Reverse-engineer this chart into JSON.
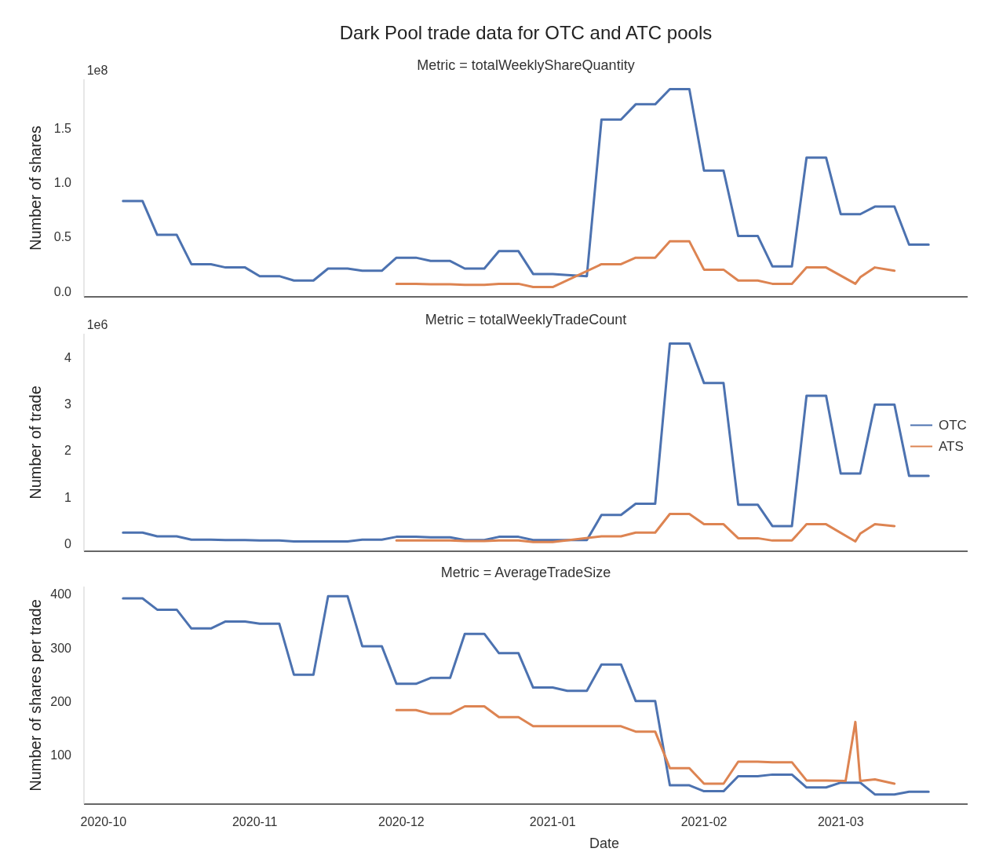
{
  "chart_data": [
    {
      "type": "line",
      "title": "Dark Pool trade data for OTC and ATC pools",
      "subtitle": "Metric = totalWeeklyShareQuantity",
      "ylabel": "Number of shares",
      "annotations": [
        "1e8"
      ],
      "xlim": [
        "2020-09-27",
        "2021-03-27"
      ],
      "ylim": [
        -0.05,
        1.95
      ],
      "yticks": [
        {
          "value": 0,
          "label": "0.0"
        },
        0.5,
        {
          "value": 1,
          "label": "1.0"
        },
        1.5
      ],
      "tick_labels": "y",
      "grid": false,
      "legend": false,
      "series": [
        {
          "color": "#4c72b0",
          "x": [
            "2020-10-05",
            "2020-10-09",
            "2020-10-12",
            "2020-10-16",
            "2020-10-19",
            "2020-10-23",
            "2020-10-26",
            "2020-10-30",
            "2020-11-02",
            "2020-11-06",
            "2020-11-09",
            "2020-11-13",
            "2020-11-16",
            "2020-11-20",
            "2020-11-23",
            "2020-11-27",
            "2020-11-30",
            "2020-12-04",
            "2020-12-07",
            "2020-12-11",
            "2020-12-14",
            "2020-12-18",
            "2020-12-21",
            "2020-12-25",
            "2020-12-28",
            "2021-01-01",
            "2021-01-04",
            "2021-01-08",
            "2021-01-11",
            "2021-01-15",
            "2021-01-18",
            "2021-01-22",
            "2021-01-25",
            "2021-01-29",
            "2021-02-01",
            "2021-02-05",
            "2021-02-08",
            "2021-02-12",
            "2021-02-15",
            "2021-02-19",
            "2021-02-22",
            "2021-02-26",
            "2021-03-01",
            "2021-03-05",
            "2021-03-08",
            "2021-03-12",
            "2021-03-15",
            "2021-03-19"
          ],
          "values": [
            0.83,
            0.83,
            0.52,
            0.52,
            0.25,
            0.25,
            0.22,
            0.22,
            0.14,
            0.14,
            0.1,
            0.1,
            0.21,
            0.21,
            0.19,
            0.19,
            0.31,
            0.31,
            0.28,
            0.28,
            0.21,
            0.21,
            0.37,
            0.37,
            0.16,
            0.16,
            0.15,
            0.14,
            1.58,
            1.58,
            1.72,
            1.72,
            1.86,
            1.86,
            1.11,
            1.11,
            0.51,
            0.51,
            0.23,
            0.23,
            1.23,
            1.23,
            0.71,
            0.71,
            0.78,
            0.78,
            0.43,
            0.43
          ]
        },
        {
          "color": "#dd8452",
          "x": [
            "2020-11-30",
            "2020-12-04",
            "2020-12-07",
            "2020-12-11",
            "2020-12-14",
            "2020-12-18",
            "2020-12-21",
            "2020-12-25",
            "2020-12-28",
            "2021-01-01",
            "2021-01-11",
            "2021-01-15",
            "2021-01-18",
            "2021-01-22",
            "2021-01-25",
            "2021-01-29",
            "2021-02-01",
            "2021-02-05",
            "2021-02-08",
            "2021-02-12",
            "2021-02-15",
            "2021-02-19",
            "2021-02-22",
            "2021-02-26",
            "2021-03-04",
            "2021-03-05",
            "2021-03-08",
            "2021-03-12"
          ],
          "values": [
            0.07,
            0.07,
            0.065,
            0.065,
            0.06,
            0.06,
            0.07,
            0.07,
            0.04,
            0.04,
            0.25,
            0.25,
            0.31,
            0.31,
            0.46,
            0.46,
            0.2,
            0.2,
            0.1,
            0.1,
            0.07,
            0.07,
            0.22,
            0.22,
            0.07,
            0.13,
            0.22,
            0.19
          ]
        }
      ]
    },
    {
      "type": "line",
      "subtitle": "Metric = totalWeeklyTradeCount",
      "ylabel": "Number of trade",
      "annotations": [
        "1e6"
      ],
      "xlim": [
        "2020-09-27",
        "2021-03-27"
      ],
      "ylim": [
        -0.16,
        4.51
      ],
      "yticks": [
        0,
        1,
        2,
        3,
        4
      ],
      "tick_labels": "y",
      "grid": false,
      "legend": "right",
      "series": [
        {
          "name": "OTC",
          "color": "#4c72b0",
          "x": [
            "2020-10-05",
            "2020-10-09",
            "2020-10-12",
            "2020-10-16",
            "2020-10-19",
            "2020-10-23",
            "2020-10-26",
            "2020-10-30",
            "2020-11-02",
            "2020-11-06",
            "2020-11-09",
            "2020-11-13",
            "2020-11-16",
            "2020-11-20",
            "2020-11-23",
            "2020-11-27",
            "2020-11-30",
            "2020-12-04",
            "2020-12-07",
            "2020-12-11",
            "2020-12-14",
            "2020-12-18",
            "2020-12-21",
            "2020-12-25",
            "2020-12-28",
            "2021-01-01",
            "2021-01-04",
            "2021-01-08",
            "2021-01-11",
            "2021-01-15",
            "2021-01-18",
            "2021-01-22",
            "2021-01-25",
            "2021-01-29",
            "2021-02-01",
            "2021-02-05",
            "2021-02-08",
            "2021-02-12",
            "2021-02-15",
            "2021-02-19",
            "2021-02-22",
            "2021-02-26",
            "2021-03-01",
            "2021-03-05",
            "2021-03-08",
            "2021-03-12",
            "2021-03-15",
            "2021-03-19"
          ],
          "values": [
            0.24,
            0.24,
            0.16,
            0.16,
            0.09,
            0.09,
            0.08,
            0.08,
            0.07,
            0.07,
            0.05,
            0.05,
            0.05,
            0.05,
            0.09,
            0.09,
            0.15,
            0.15,
            0.14,
            0.14,
            0.08,
            0.08,
            0.15,
            0.15,
            0.08,
            0.08,
            0.08,
            0.08,
            0.62,
            0.62,
            0.86,
            0.86,
            4.3,
            4.3,
            3.45,
            3.45,
            0.84,
            0.84,
            0.38,
            0.38,
            3.18,
            3.18,
            1.51,
            1.51,
            2.99,
            2.99,
            1.46,
            1.46
          ]
        },
        {
          "name": "ATS",
          "color": "#dd8452",
          "x": [
            "2020-11-30",
            "2020-12-04",
            "2020-12-07",
            "2020-12-11",
            "2020-12-14",
            "2020-12-18",
            "2020-12-21",
            "2020-12-25",
            "2020-12-28",
            "2021-01-01",
            "2021-01-11",
            "2021-01-15",
            "2021-01-18",
            "2021-01-22",
            "2021-01-25",
            "2021-01-29",
            "2021-02-01",
            "2021-02-05",
            "2021-02-08",
            "2021-02-12",
            "2021-02-15",
            "2021-02-19",
            "2021-02-22",
            "2021-02-26",
            "2021-03-04",
            "2021-03-05",
            "2021-03-08",
            "2021-03-12"
          ],
          "values": [
            0.07,
            0.07,
            0.07,
            0.07,
            0.06,
            0.06,
            0.07,
            0.07,
            0.04,
            0.04,
            0.16,
            0.16,
            0.24,
            0.24,
            0.64,
            0.64,
            0.42,
            0.42,
            0.12,
            0.12,
            0.07,
            0.07,
            0.42,
            0.42,
            0.05,
            0.22,
            0.42,
            0.38
          ]
        }
      ]
    },
    {
      "type": "line",
      "subtitle": "Metric = AverageTradeSize",
      "ylabel": "Number of shares per trade",
      "xlabel": "Date",
      "xlim": [
        "2020-09-27",
        "2021-03-27"
      ],
      "xticks": [
        "2020-10",
        "2020-11",
        "2020-12",
        "2021-01",
        "2021-02",
        "2021-03"
      ],
      "ylim": [
        9,
        414
      ],
      "yticks": [
        100,
        200,
        300,
        400
      ],
      "grid": false,
      "legend": false,
      "series": [
        {
          "color": "#4c72b0",
          "x": [
            "2020-10-05",
            "2020-10-09",
            "2020-10-12",
            "2020-10-16",
            "2020-10-19",
            "2020-10-23",
            "2020-10-26",
            "2020-10-30",
            "2020-11-02",
            "2020-11-06",
            "2020-11-09",
            "2020-11-13",
            "2020-11-16",
            "2020-11-20",
            "2020-11-23",
            "2020-11-27",
            "2020-11-30",
            "2020-12-04",
            "2020-12-07",
            "2020-12-11",
            "2020-12-14",
            "2020-12-18",
            "2020-12-21",
            "2020-12-25",
            "2020-12-28",
            "2021-01-01",
            "2021-01-04",
            "2021-01-08",
            "2021-01-11",
            "2021-01-15",
            "2021-01-18",
            "2021-01-22",
            "2021-01-25",
            "2021-01-29",
            "2021-02-01",
            "2021-02-05",
            "2021-02-08",
            "2021-02-12",
            "2021-02-15",
            "2021-02-19",
            "2021-02-22",
            "2021-02-26",
            "2021-03-01",
            "2021-03-05",
            "2021-03-08",
            "2021-03-12",
            "2021-03-15",
            "2021-03-19"
          ],
          "values": [
            392,
            392,
            371,
            371,
            336,
            336,
            349,
            349,
            345,
            345,
            250,
            250,
            396,
            396,
            303,
            303,
            233,
            233,
            244,
            244,
            326,
            326,
            290,
            290,
            226,
            226,
            220,
            220,
            269,
            269,
            201,
            201,
            44,
            44,
            33,
            33,
            61,
            61,
            64,
            64,
            40,
            40,
            49,
            49,
            27,
            27,
            32,
            32
          ]
        },
        {
          "color": "#dd8452",
          "x": [
            "2020-11-30",
            "2020-12-04",
            "2020-12-07",
            "2020-12-11",
            "2020-12-14",
            "2020-12-18",
            "2020-12-21",
            "2020-12-25",
            "2020-12-28",
            "2021-01-01",
            "2021-01-11",
            "2021-01-15",
            "2021-01-18",
            "2021-01-22",
            "2021-01-25",
            "2021-01-29",
            "2021-02-01",
            "2021-02-05",
            "2021-02-08",
            "2021-02-12",
            "2021-02-15",
            "2021-02-19",
            "2021-02-22",
            "2021-02-26",
            "2021-03-02",
            "2021-03-04",
            "2021-03-05",
            "2021-03-08",
            "2021-03-12"
          ],
          "values": [
            184,
            184,
            177,
            177,
            191,
            191,
            171,
            171,
            154,
            154,
            154,
            154,
            144,
            144,
            76,
            76,
            47,
            47,
            88,
            88,
            87,
            87,
            53,
            53,
            52,
            162,
            52,
            55,
            47
          ]
        }
      ]
    }
  ]
}
